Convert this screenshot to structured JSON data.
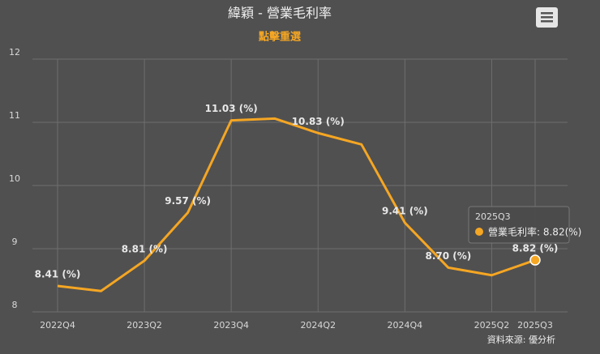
{
  "chart_data": {
    "type": "line",
    "title": "緯穎 - 營業毛利率",
    "subtitle": "點擊重選",
    "categories": [
      "2022Q4",
      null,
      "2023Q2",
      null,
      "2023Q4",
      null,
      "2024Q2",
      null,
      "2024Q4",
      null,
      "2025Q2",
      "2025Q3"
    ],
    "values": [
      8.41,
      8.33,
      8.81,
      9.57,
      11.03,
      11.06,
      10.83,
      10.65,
      9.41,
      8.7,
      8.58,
      8.82
    ],
    "value_labels": [
      "8.41 (%)",
      null,
      "8.81 (%)",
      "9.57 (%)",
      "11.03 (%)",
      null,
      "10.83 (%)",
      null,
      "9.41 (%)",
      "8.70 (%)",
      null,
      "8.82 (%)"
    ],
    "color": "#f5a623",
    "ylim": [
      8,
      12
    ],
    "yticks": [
      8,
      9,
      10,
      11,
      12
    ],
    "grid": true,
    "tooltip": {
      "category": "2025Q3",
      "text": "營業毛利率: 8.82(%)"
    },
    "credit": "資料來源: 優分析"
  }
}
